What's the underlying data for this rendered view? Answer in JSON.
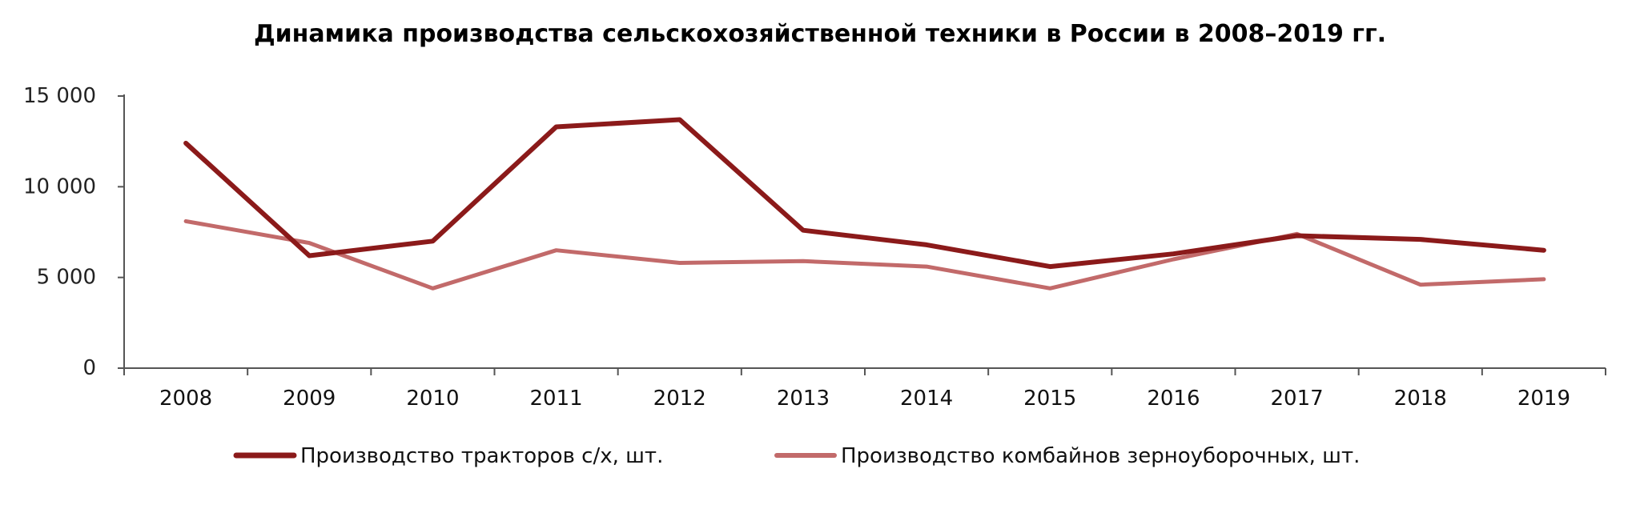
{
  "chart_data": {
    "type": "line",
    "title": "Динамика производства сельскохозяйственной  техники в России в 2008–2019 гг.",
    "xlabel": "",
    "ylabel": "",
    "categories": [
      "2008",
      "2009",
      "2010",
      "2011",
      "2012",
      "2013",
      "2014",
      "2015",
      "2016",
      "2017",
      "2018",
      "2019"
    ],
    "ylim": [
      0,
      15000
    ],
    "yticks": [
      0,
      5000,
      10000,
      15000
    ],
    "ytick_labels": [
      "0",
      "5 000",
      "10 000",
      "15 000"
    ],
    "grid": false,
    "legend_position": "bottom",
    "series": [
      {
        "name": "Производство тракторов с/х, шт.",
        "color": "#8b1a1a",
        "values": [
          12400,
          6200,
          7000,
          13300,
          13700,
          7600,
          6800,
          5600,
          6300,
          7300,
          7100,
          6500
        ]
      },
      {
        "name": "Производство комбайнов зерноуборочных, шт.",
        "color": "#c26a6a",
        "values": [
          8100,
          6900,
          4400,
          6500,
          5800,
          5900,
          5600,
          4400,
          6000,
          7400,
          4600,
          4900
        ]
      }
    ]
  }
}
